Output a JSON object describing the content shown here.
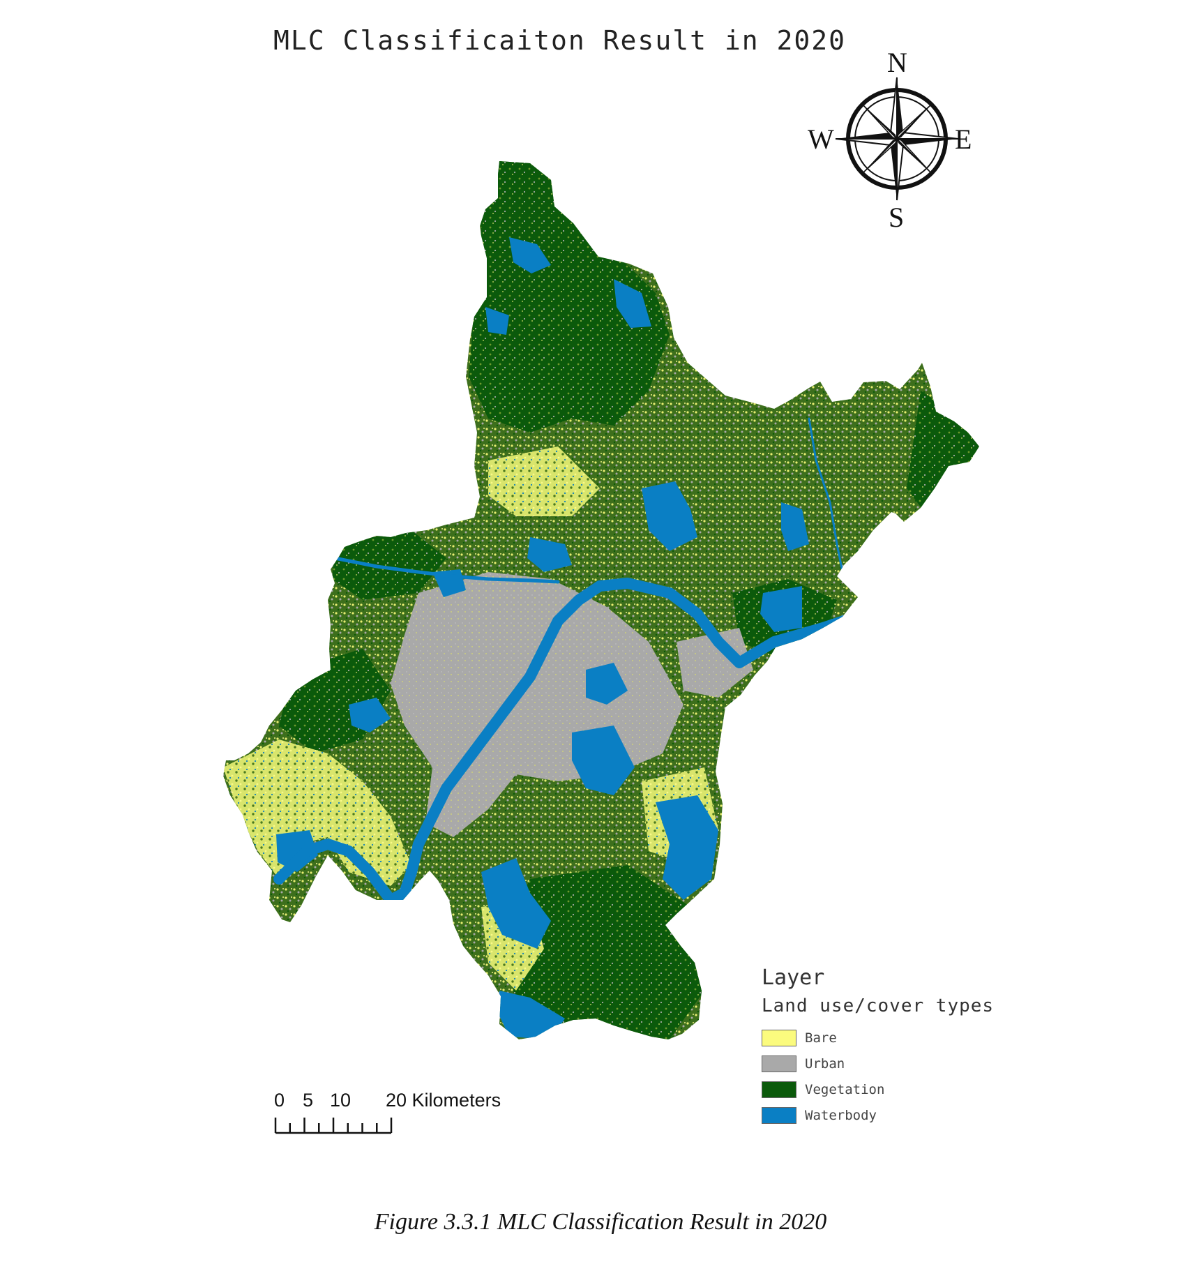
{
  "map": {
    "title": "MLC Classificaiton Result in 2020",
    "north_arrow": {
      "n": "N",
      "s": "S",
      "e": "E",
      "w": "W"
    },
    "legend": {
      "heading": "Layer",
      "subheading": "Land use/cover types",
      "items": [
        {
          "label": "Bare",
          "color": "#fbfb7e"
        },
        {
          "label": "Urban",
          "color": "#a9a9a9"
        },
        {
          "label": "Vegetation",
          "color": "#0b5a0b"
        },
        {
          "label": "Waterbody",
          "color": "#0a7fc4"
        }
      ]
    },
    "scale_bar": {
      "labels": [
        "0",
        "5",
        "10",
        "20 Kilometers"
      ],
      "values_km": [
        0,
        5,
        10,
        20
      ]
    },
    "colors": {
      "bare": "#fbfb7e",
      "urban": "#a9a9a9",
      "vegetation": "#0b5a0b",
      "vegetation_light": "#4b7a1f",
      "waterbody": "#0a7fc4"
    }
  },
  "caption": "Figure 3.3.1 MLC Classification Result in 2020"
}
